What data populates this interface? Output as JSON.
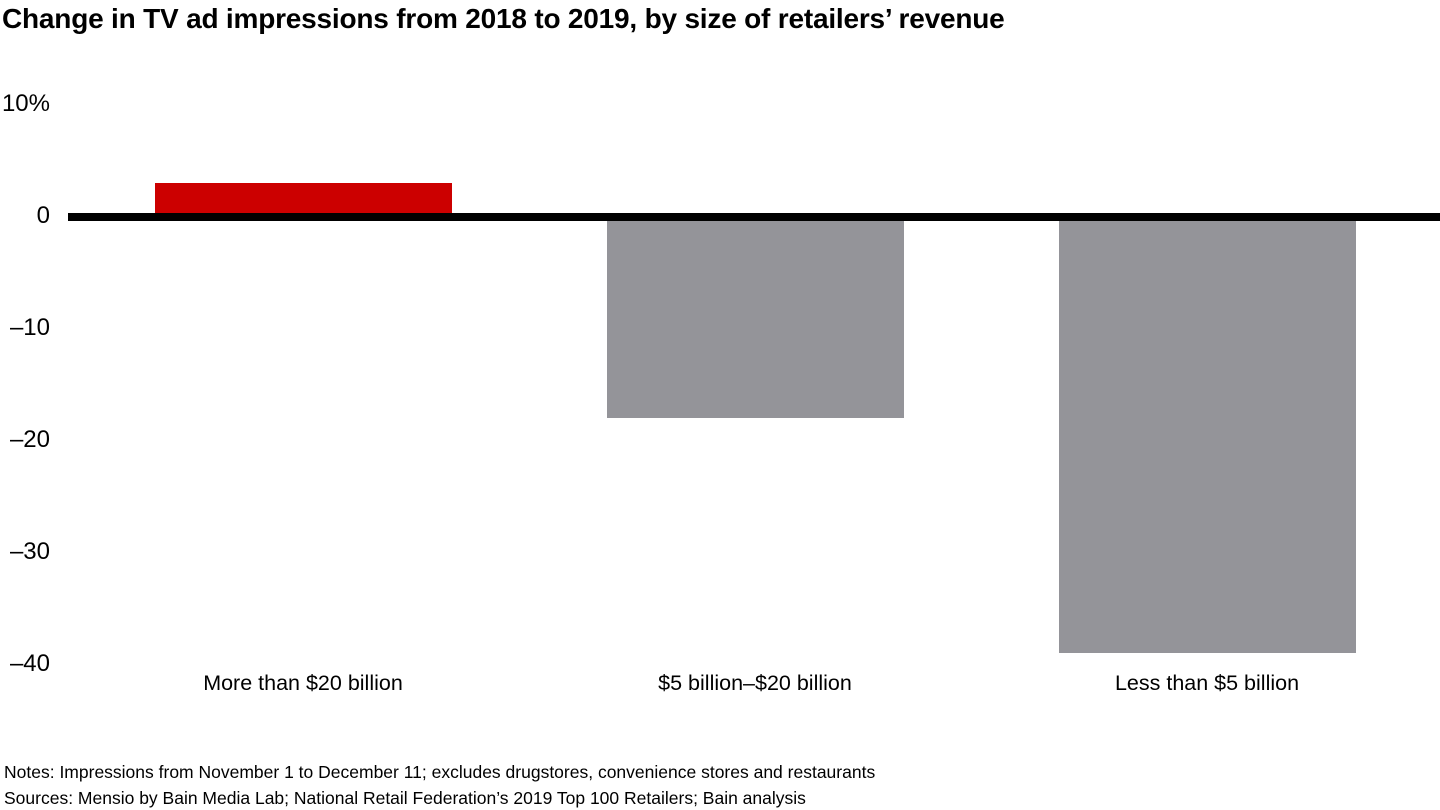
{
  "title": "Change in TV ad impressions from 2018 to 2019, by size of retailers’ revenue",
  "chart_data": {
    "type": "bar",
    "title": "Change in TV ad impressions from 2018 to 2019, by size of retailers’ revenue",
    "categories": [
      "More than $20 billion",
      "$5 billion–$20 billion",
      "Less than $5 billion"
    ],
    "values": [
      3,
      -18,
      -39
    ],
    "unit": "%",
    "xlabel": "",
    "ylabel": "",
    "ylim": [
      -40,
      10
    ],
    "grid": false,
    "legend": null,
    "y_ticks": [
      {
        "value": 10,
        "label": "10%"
      },
      {
        "value": 0,
        "label": "0"
      },
      {
        "value": -10,
        "label": "–10"
      },
      {
        "value": -20,
        "label": "–20"
      },
      {
        "value": -30,
        "label": "–30"
      },
      {
        "value": -40,
        "label": "–40"
      }
    ],
    "bar_colors": [
      "#cc0000",
      "#949499",
      "#949499"
    ],
    "axis_color": "#000000"
  },
  "colors": {
    "positive_bar": "#cc0000",
    "negative_bar": "#949499",
    "axis": "#000000",
    "background": "#ffffff",
    "text": "#000000"
  },
  "footer": {
    "notes": "Notes: Impressions from November 1 to December 11; excludes drugstores, convenience stores and restaurants",
    "sources": "Sources: Mensio by Bain Media Lab; National Retail Federation’s 2019 Top 100 Retailers; Bain analysis"
  }
}
